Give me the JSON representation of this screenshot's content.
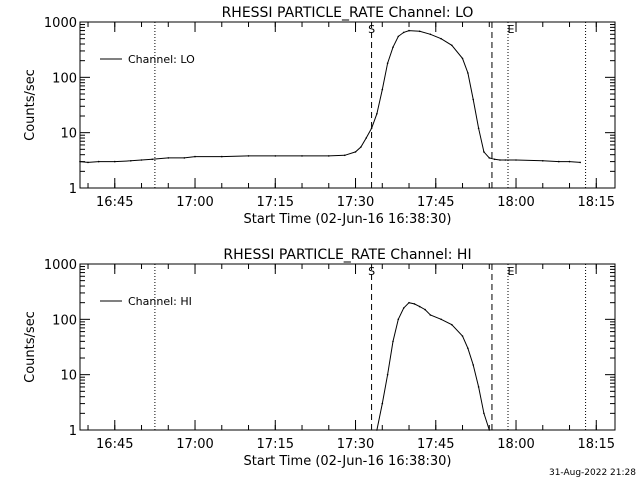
{
  "chart_data": [
    {
      "type": "line",
      "title": "RHESSI PARTICLE_RATE Channel: LO",
      "xlabel": "Start Time (02-Jun-16 16:38:30)",
      "ylabel": "Counts/sec",
      "y_scale": "log",
      "ylim": [
        1,
        1000
      ],
      "xlim": [
        "16:38:30",
        "18:18:30"
      ],
      "xticks": [
        "16:45",
        "17:00",
        "17:15",
        "17:30",
        "17:45",
        "18:00",
        "18:15"
      ],
      "yticks": [
        "1",
        "10",
        "100",
        "1000"
      ],
      "legend_position": "top-left",
      "series": [
        {
          "name": "Channel: LO",
          "x": [
            "16:38:30",
            "16:40",
            "16:42",
            "16:45",
            "16:48",
            "16:50",
            "16:52",
            "16:55",
            "16:58",
            "17:00",
            "17:05",
            "17:10",
            "17:15",
            "17:20",
            "17:25",
            "17:28",
            "17:30",
            "17:31",
            "17:32",
            "17:33",
            "17:34",
            "17:35",
            "17:36",
            "17:37",
            "17:38",
            "17:39",
            "17:40",
            "17:42",
            "17:44",
            "17:46",
            "17:48",
            "17:50",
            "17:51",
            "17:52",
            "17:53",
            "17:54",
            "17:55",
            "17:56",
            "17:57",
            "17:58",
            "18:00",
            "18:05",
            "18:08",
            "18:10",
            "18:12"
          ],
          "values": [
            3,
            2.9,
            3,
            3,
            3.1,
            3.2,
            3.3,
            3.5,
            3.5,
            3.7,
            3.7,
            3.8,
            3.8,
            3.8,
            3.8,
            3.9,
            4.5,
            5.5,
            8,
            12,
            22,
            60,
            180,
            350,
            550,
            650,
            700,
            680,
            600,
            500,
            380,
            220,
            120,
            40,
            12,
            4.5,
            3.5,
            3.3,
            3.2,
            3.2,
            3.2,
            3.1,
            3.0,
            3.0,
            2.9
          ]
        }
      ],
      "markers": [
        {
          "label": "S",
          "style": "dashed",
          "time": "17:33:00"
        },
        {
          "label": "",
          "style": "dashed",
          "time": "17:55:30"
        },
        {
          "label": "",
          "style": "dotted",
          "time": "16:52:30"
        },
        {
          "label": "E",
          "style": "dotted",
          "time": "17:58:30"
        },
        {
          "label": "",
          "style": "dotted",
          "time": "18:13:00"
        }
      ]
    },
    {
      "type": "line",
      "title": "RHESSI PARTICLE_RATE Channel: HI",
      "xlabel": "Start Time (02-Jun-16 16:38:30)",
      "ylabel": "Counts/sec",
      "y_scale": "log",
      "ylim": [
        1,
        1000
      ],
      "xlim": [
        "16:38:30",
        "18:18:30"
      ],
      "xticks": [
        "16:45",
        "17:00",
        "17:15",
        "17:30",
        "17:45",
        "18:00",
        "18:15"
      ],
      "yticks": [
        "1",
        "10",
        "100",
        "1000"
      ],
      "legend_position": "top-left",
      "series": [
        {
          "name": "Channel: HI",
          "x": [
            "17:34",
            "17:35",
            "17:36",
            "17:37",
            "17:38",
            "17:39",
            "17:40",
            "17:41",
            "17:42",
            "17:43",
            "17:44",
            "17:46",
            "17:48",
            "17:50",
            "17:51",
            "17:52",
            "17:53",
            "17:54",
            "17:55"
          ],
          "values": [
            1,
            3,
            10,
            40,
            100,
            160,
            200,
            190,
            170,
            150,
            120,
            100,
            80,
            50,
            30,
            15,
            6,
            2,
            1
          ]
        }
      ],
      "markers": [
        {
          "label": "S",
          "style": "dashed",
          "time": "17:33:00"
        },
        {
          "label": "",
          "style": "dashed",
          "time": "17:55:30"
        },
        {
          "label": "",
          "style": "dotted",
          "time": "16:52:30"
        },
        {
          "label": "E",
          "style": "dotted",
          "time": "17:58:30"
        },
        {
          "label": "",
          "style": "dotted",
          "time": "18:13:00"
        }
      ]
    }
  ],
  "footer": {
    "timestamp": "31-Aug-2022 21:28"
  }
}
